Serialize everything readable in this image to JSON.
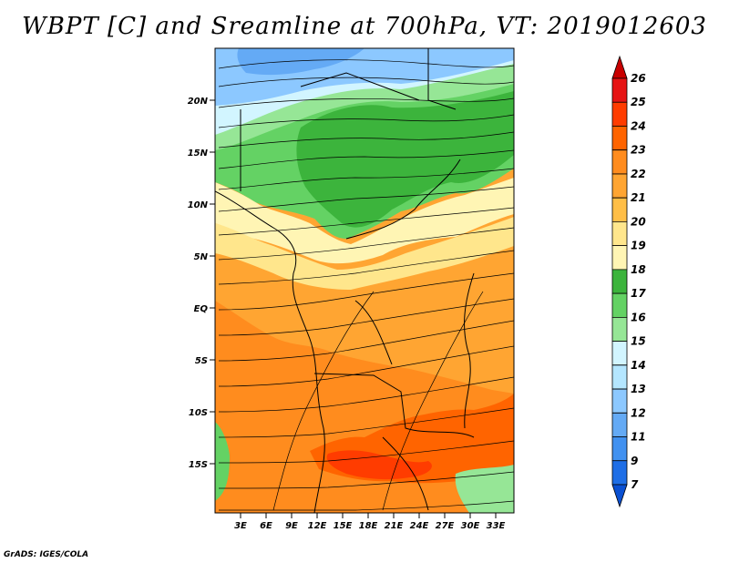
{
  "title": "WBPT [C] and Sreamline at 700hPa, VT: 2019012603",
  "credit": "GrADS: IGES/COLA",
  "map": {
    "lat_labels": [
      "20N",
      "15N",
      "10N",
      "5N",
      "EQ",
      "5S",
      "10S",
      "15S"
    ],
    "lon_labels": [
      "3E",
      "6E",
      "9E",
      "12E",
      "15E",
      "18E",
      "21E",
      "24E",
      "27E",
      "30E",
      "33E"
    ],
    "fields": [
      "wet-bulb potential temperature",
      "streamlines"
    ],
    "pattern": "cool blue/green in north, orange 20-23 over south with red 23-24 patches"
  },
  "colorbar": {
    "levels": [
      "26",
      "25",
      "24",
      "23",
      "22",
      "21",
      "20",
      "19",
      "18",
      "17",
      "16",
      "15",
      "14",
      "13",
      "12",
      "11",
      "9",
      "7"
    ],
    "colors": [
      "#c80000",
      "#e61414",
      "#ff3c00",
      "#ff6400",
      "#ff8c1e",
      "#ffa532",
      "#ffbe46",
      "#ffe68c",
      "#fff5b4",
      "#3cb43c",
      "#64d264",
      "#96e696",
      "#d2f5ff",
      "#b4e6ff",
      "#8cc8ff",
      "#64aaf5",
      "#4191f0",
      "#1e6ee6",
      "#0a50d2"
    ]
  }
}
